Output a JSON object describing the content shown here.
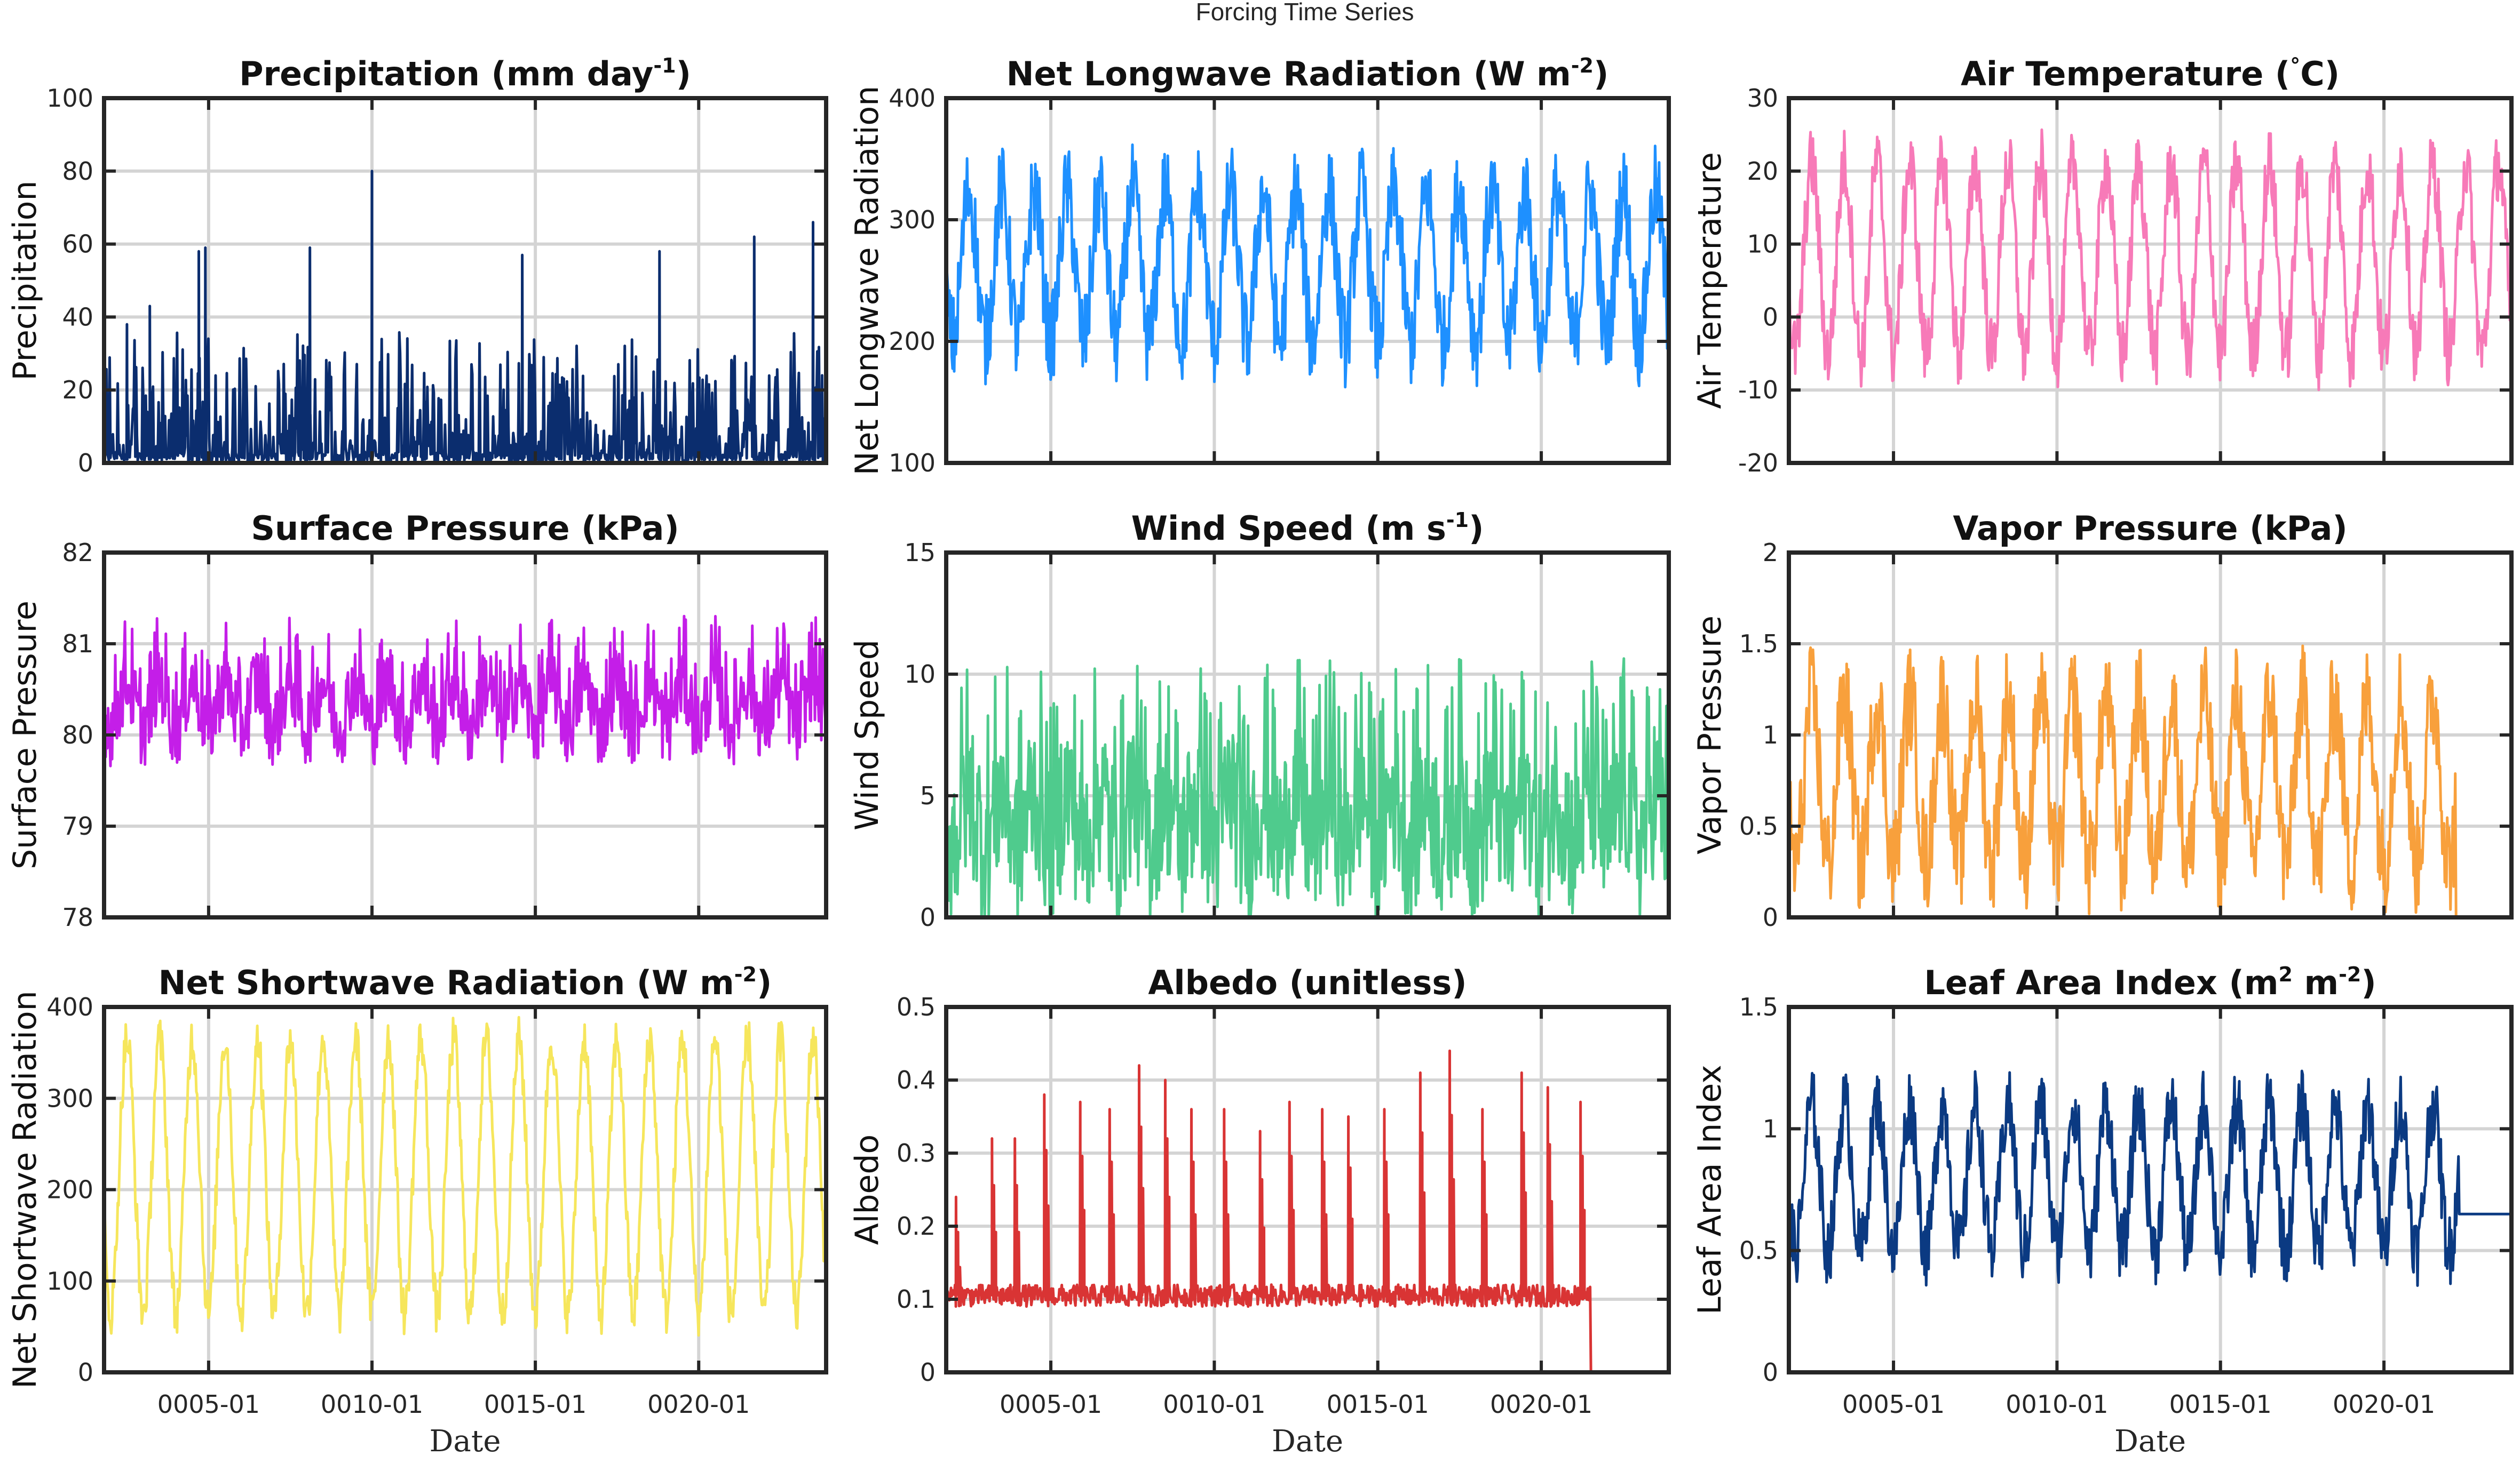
{
  "figure": {
    "title": "Forcing Time Series",
    "xlabel": "Date"
  },
  "chart_data": [
    {
      "type": "line",
      "id": "precip",
      "title": "Precipitation (mm day",
      "title_sup": "-1",
      "title_end": ")",
      "ylabel": "Precipitation",
      "ylim": [
        0,
        100
      ],
      "yticks": [
        0,
        20,
        40,
        60,
        80,
        100
      ],
      "xticks": [],
      "color": "#0b2d6e",
      "style": "spiky",
      "base": 0,
      "amp": 8,
      "peaks": [
        [
          2002.5,
          38
        ],
        [
          2003.2,
          43
        ],
        [
          2004.7,
          58
        ],
        [
          2004.9,
          59
        ],
        [
          2008.1,
          59
        ],
        [
          2010.0,
          80
        ],
        [
          2014.6,
          57
        ],
        [
          2018.8,
          58
        ],
        [
          2021.7,
          62
        ],
        [
          2023.5,
          66
        ]
      ],
      "series": [
        {
          "name": "",
          "color": "#0b2d6e"
        }
      ]
    },
    {
      "type": "line",
      "id": "lw",
      "title": "Net Longwave Radiation (W m",
      "title_sup": "-2",
      "title_end": ")",
      "ylabel": "Net Longwave Radiation",
      "ylim": [
        100,
        400
      ],
      "yticks": [
        100,
        200,
        300,
        400
      ],
      "xticks": [],
      "color": "#1e90ff",
      "style": "seasonal",
      "base": 262,
      "amp": 62,
      "noise": 38,
      "series": [
        {
          "name": "",
          "color": "#1e90ff"
        }
      ]
    },
    {
      "type": "line",
      "id": "temp",
      "title": "Air Temperature (",
      "title_sup": "°",
      "title_end": "C)",
      "ylabel": "Air Temperature",
      "ylim": [
        -20,
        30
      ],
      "yticks": [
        -20,
        -10,
        0,
        10,
        20,
        30
      ],
      "xticks": [],
      "color": "#f77ab8",
      "style": "seasonal",
      "base": 8,
      "amp": 13,
      "noise": 5,
      "series": [
        {
          "name": "",
          "color": "#f77ab8"
        }
      ]
    },
    {
      "type": "line",
      "id": "psurf",
      "title": "Surface Pressure (kPa)",
      "title_sup": "",
      "title_end": "",
      "ylabel": "Surface Pressure",
      "ylim": [
        78,
        82
      ],
      "yticks": [
        78,
        79,
        80,
        81,
        82
      ],
      "xticks": [],
      "color": "#c41ee8",
      "style": "noisy",
      "base": 80.35,
      "amp": 0.25,
      "noise": 0.45,
      "series": [
        {
          "name": "",
          "color": "#c41ee8"
        }
      ]
    },
    {
      "type": "line",
      "id": "wind",
      "title": "Wind Speed (m s",
      "title_sup": "-1",
      "title_end": ")",
      "ylabel": "Wind Speed",
      "ylim": [
        0,
        15
      ],
      "yticks": [
        0,
        5,
        10,
        15
      ],
      "xticks": [],
      "color": "#4fcb8d",
      "style": "noisy",
      "base": 4.2,
      "amp": 1.0,
      "noise": 3.5,
      "series": [
        {
          "name": "",
          "color": "#4fcb8d"
        }
      ]
    },
    {
      "type": "line",
      "id": "vapor",
      "title": "Vapor Pressure (kPa)",
      "title_sup": "",
      "title_end": "",
      "ylabel": "Vapor Pressure",
      "ylim": [
        0,
        2
      ],
      "yticks": [
        0,
        0.5,
        1,
        1.5,
        2
      ],
      "xticks": [],
      "color": "#f8a03c",
      "style": "seasonal",
      "base": 0.75,
      "amp": 0.45,
      "noise": 0.3,
      "cutoff": 2022.2,
      "after": 0,
      "series": [
        {
          "name": "",
          "color": "#f8a03c"
        }
      ]
    },
    {
      "type": "line",
      "id": "sw",
      "title": "Net Shortwave Radiation (W m",
      "title_sup": "-2",
      "title_end": ")",
      "ylabel": "Net Shortwave Radiation",
      "ylim": [
        0,
        400
      ],
      "yticks": [
        0,
        100,
        200,
        300,
        400
      ],
      "xticks": [
        "0005-01",
        "0010-01",
        "0015-01",
        "0020-01"
      ],
      "color": "#f6e65c",
      "style": "seasonal",
      "base": 215,
      "amp": 150,
      "noise": 25,
      "series": [
        {
          "name": "",
          "color": "#f6e65c"
        }
      ]
    },
    {
      "type": "line",
      "id": "albedo",
      "title": "Albedo (unitless)",
      "title_sup": "",
      "title_end": "",
      "ylabel": "Albedo",
      "ylim": [
        0,
        0.5
      ],
      "yticks": [
        0,
        0.1,
        0.2,
        0.3,
        0.4,
        0.5
      ],
      "xticks": [
        "0005-01",
        "0010-01",
        "0015-01",
        "0020-01"
      ],
      "color": "#d93434",
      "style": "albedo",
      "base": 0.105,
      "cutoff": 2021.5,
      "after": 0,
      "peaks": [
        [
          2002.1,
          0.24
        ],
        [
          2003.2,
          0.32
        ],
        [
          2003.9,
          0.32
        ],
        [
          2004.8,
          0.38
        ],
        [
          2005.9,
          0.37
        ],
        [
          2006.8,
          0.36
        ],
        [
          2007.7,
          0.42
        ],
        [
          2008.5,
          0.4
        ],
        [
          2009.3,
          0.36
        ],
        [
          2010.3,
          0.36
        ],
        [
          2011.4,
          0.33
        ],
        [
          2012.3,
          0.37
        ],
        [
          2013.3,
          0.36
        ],
        [
          2014.1,
          0.35
        ],
        [
          2015.2,
          0.36
        ],
        [
          2016.3,
          0.41
        ],
        [
          2017.2,
          0.44
        ],
        [
          2018.2,
          0.36
        ],
        [
          2019.4,
          0.41
        ],
        [
          2020.2,
          0.39
        ],
        [
          2021.2,
          0.37
        ]
      ],
      "series": [
        {
          "name": "",
          "color": "#d93434"
        }
      ]
    },
    {
      "type": "line",
      "id": "lai",
      "title": "Leaf Area Index (m",
      "title_sup": "2",
      "title_end": " m",
      "title_sup2": "-2",
      "title_end2": ")",
      "ylabel": "Leaf Area Index",
      "ylim": [
        0,
        1.5
      ],
      "yticks": [
        0,
        0.5,
        1,
        1.5
      ],
      "xticks": [
        "0005-01",
        "0010-01",
        "0015-01",
        "0020-01"
      ],
      "color": "#0b3a82",
      "style": "seasonal",
      "base": 0.8,
      "amp": 0.3,
      "noise": 0.15,
      "cutoff": 2022.3,
      "after": 0.65,
      "series": [
        {
          "name": "",
          "color": "#0b3a82"
        }
      ]
    }
  ],
  "x_range": [
    2001.8,
    2023.9
  ],
  "x_tick_years": [
    2005,
    2010,
    2015,
    2020
  ]
}
